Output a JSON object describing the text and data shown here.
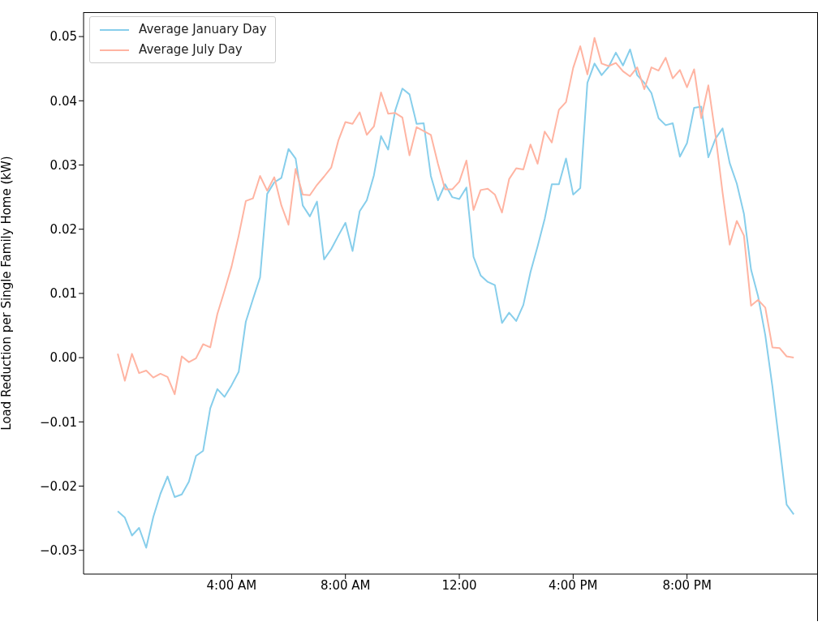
{
  "chart_data": {
    "type": "line",
    "ylabel": "Load Reduction per Single Family Home (kW)",
    "x": [
      0,
      0.25,
      0.5,
      0.75,
      1,
      1.25,
      1.5,
      1.75,
      2,
      2.25,
      2.5,
      2.75,
      3,
      3.25,
      3.5,
      3.75,
      4,
      4.25,
      4.5,
      4.75,
      5,
      5.25,
      5.5,
      5.75,
      6,
      6.25,
      6.5,
      6.75,
      7,
      7.25,
      7.5,
      7.75,
      8,
      8.25,
      8.5,
      8.75,
      9,
      9.25,
      9.5,
      9.75,
      10,
      10.25,
      10.5,
      10.75,
      11,
      11.25,
      11.5,
      11.75,
      12,
      12.25,
      12.5,
      12.75,
      13,
      13.25,
      13.5,
      13.75,
      14,
      14.25,
      14.5,
      14.75,
      15,
      15.25,
      15.5,
      15.75,
      16,
      16.25,
      16.5,
      16.75,
      17,
      17.25,
      17.5,
      17.75,
      18,
      18.25,
      18.5,
      18.75,
      19,
      19.25,
      19.5,
      19.75,
      20,
      20.25,
      20.5,
      20.75,
      21,
      21.25,
      21.5,
      21.75,
      22,
      22.25,
      22.5,
      22.75,
      23,
      23.25,
      23.5,
      23.75
    ],
    "series": [
      {
        "name": "Average January Day",
        "color": "#87ceeb",
        "values": [
          -0.0239,
          -0.0249,
          -0.0277,
          -0.0265,
          -0.0296,
          -0.0248,
          -0.0212,
          -0.0185,
          -0.0217,
          -0.0213,
          -0.0193,
          -0.0153,
          -0.0145,
          -0.0079,
          -0.0049,
          -0.0061,
          -0.0043,
          -0.0022,
          0.0056,
          0.0091,
          0.0125,
          0.0255,
          0.0273,
          0.028,
          0.0325,
          0.031,
          0.0237,
          0.022,
          0.0243,
          0.0153,
          0.0169,
          0.019,
          0.021,
          0.0166,
          0.0228,
          0.0245,
          0.0284,
          0.0345,
          0.0324,
          0.0385,
          0.0419,
          0.041,
          0.0364,
          0.0365,
          0.0283,
          0.0245,
          0.027,
          0.025,
          0.0247,
          0.0265,
          0.0157,
          0.0128,
          0.0118,
          0.0113,
          0.0054,
          0.007,
          0.0057,
          0.0082,
          0.0133,
          0.0173,
          0.0216,
          0.027,
          0.027,
          0.031,
          0.0254,
          0.0264,
          0.0428,
          0.0458,
          0.044,
          0.0453,
          0.0475,
          0.0455,
          0.048,
          0.044,
          0.0428,
          0.0412,
          0.0373,
          0.0362,
          0.0365,
          0.0313,
          0.0334,
          0.0389,
          0.0391,
          0.0312,
          0.0341,
          0.0357,
          0.0303,
          0.0271,
          0.0224,
          0.0137,
          0.0095,
          0.0035,
          -0.0045,
          -0.0136,
          -0.0229,
          -0.0244
        ]
      },
      {
        "name": "Average July Day",
        "color": "#ffb4a2",
        "values": [
          0.0006,
          -0.0036,
          0.0006,
          -0.0024,
          -0.002,
          -0.0031,
          -0.0025,
          -0.003,
          -0.0057,
          0.0002,
          -0.0007,
          -0.0001,
          0.0021,
          0.0016,
          0.0068,
          0.0104,
          0.0142,
          0.019,
          0.0244,
          0.0248,
          0.0283,
          0.026,
          0.0281,
          0.0237,
          0.0207,
          0.0294,
          0.0254,
          0.0253,
          0.0269,
          0.0282,
          0.0296,
          0.0338,
          0.0367,
          0.0364,
          0.0382,
          0.0347,
          0.036,
          0.0413,
          0.038,
          0.0381,
          0.0374,
          0.0315,
          0.0359,
          0.0353,
          0.0347,
          0.0302,
          0.0262,
          0.0262,
          0.0274,
          0.0307,
          0.023,
          0.0261,
          0.0263,
          0.0254,
          0.0226,
          0.0278,
          0.0295,
          0.0293,
          0.0332,
          0.0302,
          0.0352,
          0.0335,
          0.0386,
          0.0398,
          0.0451,
          0.0485,
          0.0441,
          0.0498,
          0.0458,
          0.0454,
          0.0459,
          0.0446,
          0.0438,
          0.0452,
          0.0418,
          0.0452,
          0.0447,
          0.0467,
          0.0435,
          0.0448,
          0.0421,
          0.0449,
          0.0373,
          0.0424,
          0.0347,
          0.0257,
          0.0176,
          0.0213,
          0.019,
          0.0081,
          0.009,
          0.0078,
          0.0016,
          0.0015,
          0.0002,
          0.0
        ]
      }
    ],
    "xlim": [
      -1.2,
      24.6
    ],
    "xticks": [
      {
        "value": 4,
        "label": "4:00 AM"
      },
      {
        "value": 8,
        "label": "8:00 AM"
      },
      {
        "value": 12,
        "label": "12:00"
      },
      {
        "value": 16,
        "label": "4:00 PM"
      },
      {
        "value": 20,
        "label": "8:00 PM"
      }
    ],
    "ylim": [
      -0.0337,
      0.0538
    ],
    "yticks": [
      {
        "value": -0.03,
        "label": "−0.03"
      },
      {
        "value": -0.02,
        "label": "−0.02"
      },
      {
        "value": -0.01,
        "label": "−0.01"
      },
      {
        "value": 0,
        "label": "0.00"
      },
      {
        "value": 0.01,
        "label": "0.01"
      },
      {
        "value": 0.02,
        "label": "0.02"
      },
      {
        "value": 0.03,
        "label": "0.03"
      },
      {
        "value": 0.04,
        "label": "0.04"
      },
      {
        "value": 0.05,
        "label": "0.05"
      }
    ],
    "grid": false,
    "legend": "top left",
    "marker": "none",
    "line_style": "solid"
  }
}
